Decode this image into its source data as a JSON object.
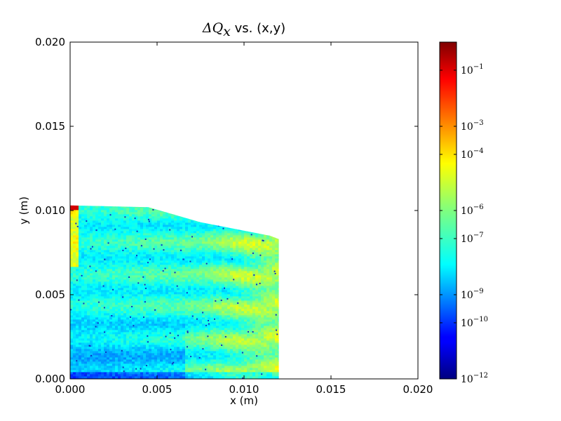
{
  "chart_data": {
    "type": "heatmap",
    "title": "ΔQ_x vs. (x,y)",
    "title_parts": {
      "math": "ΔQ",
      "sub": "x",
      "rest": " vs. (x,y)"
    },
    "xlabel": "x (m)",
    "ylabel": "y (m)",
    "xlim": [
      0.0,
      0.02
    ],
    "ylim": [
      0.0,
      0.02
    ],
    "x_ticks": [
      "0.000",
      "0.005",
      "0.010",
      "0.015",
      "0.020"
    ],
    "y_ticks": [
      "0.000",
      "0.005",
      "0.010",
      "0.015",
      "0.020"
    ],
    "colormap": "jet",
    "color_scale": "log",
    "colorbar": {
      "range": [
        1e-12,
        1
      ],
      "ticks": [
        {
          "base": "10",
          "exp": "−1",
          "value": 0.1
        },
        {
          "base": "10",
          "exp": "−3",
          "value": 0.001
        },
        {
          "base": "10",
          "exp": "−4",
          "value": 0.0001
        },
        {
          "base": "10",
          "exp": "−6",
          "value": 1e-06
        },
        {
          "base": "10",
          "exp": "−7",
          "value": 1e-07
        },
        {
          "base": "10",
          "exp": "−9",
          "value": 1e-09
        },
        {
          "base": "10",
          "exp": "−10",
          "value": 1e-10
        },
        {
          "base": "10",
          "exp": "−12",
          "value": 1e-12
        }
      ]
    },
    "region": {
      "description_boundary": [
        [
          0.0,
          0.0103
        ],
        [
          0.0045,
          0.0102
        ],
        [
          0.0075,
          0.0093
        ],
        [
          0.0115,
          0.0085
        ],
        [
          0.012,
          0.0083
        ],
        [
          0.012,
          0.0
        ]
      ]
    }
  }
}
